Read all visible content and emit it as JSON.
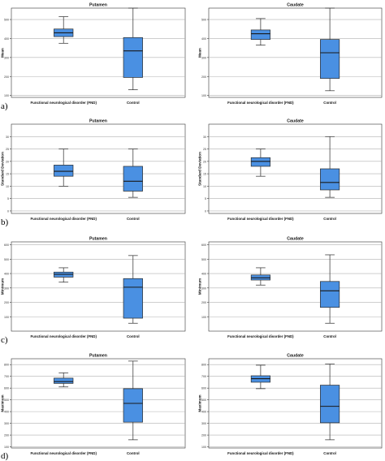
{
  "figure": {
    "row_labels": [
      "a)",
      "b)",
      "c)",
      "d)"
    ]
  },
  "style": {
    "box_fill": "#4a90e2",
    "box_stroke": "#2a2a2a",
    "grid_color": "#b0b0b0",
    "background": "#ffffff"
  },
  "chart_data": [
    {
      "type": "box",
      "row": "a)",
      "title": "Putamen",
      "ylabel": "Mean",
      "ylim": [
        90,
        560
      ],
      "yticks": [
        100,
        200,
        300,
        400,
        500
      ],
      "grid": true,
      "categories": [
        "Functional neurological disorder (FND)",
        "Control"
      ],
      "boxes": [
        {
          "min": 375,
          "q1": 410,
          "median": 430,
          "q3": 450,
          "max": 515
        },
        {
          "min": 130,
          "q1": 195,
          "median": 335,
          "q3": 405,
          "max": 590
        }
      ]
    },
    {
      "type": "box",
      "row": "a)",
      "title": "Caudate",
      "ylabel": "Mean",
      "ylim": [
        90,
        560
      ],
      "yticks": [
        100,
        200,
        300,
        400,
        500
      ],
      "grid": true,
      "categories": [
        "Functional neurological disorder (FND)",
        "Control"
      ],
      "boxes": [
        {
          "min": 365,
          "q1": 395,
          "median": 425,
          "q3": 445,
          "max": 505
        },
        {
          "min": 125,
          "q1": 190,
          "median": 325,
          "q3": 395,
          "max": 565
        }
      ]
    },
    {
      "type": "box",
      "row": "b)",
      "title": "Putamen",
      "ylabel": "Standard Deviation",
      "ylim": [
        -1,
        35
      ],
      "yticks": [
        0,
        5,
        10,
        15,
        20,
        25,
        30
      ],
      "grid": true,
      "categories": [
        "Functional neurological disorder (FND)",
        "Control"
      ],
      "boxes": [
        {
          "min": 10,
          "q1": 14,
          "median": 16,
          "q3": 18.5,
          "max": 25
        },
        {
          "min": 5.5,
          "q1": 8,
          "median": 12,
          "q3": 18,
          "max": 25
        }
      ]
    },
    {
      "type": "box",
      "row": "b)",
      "title": "Caudate",
      "ylabel": "Standard Deviation",
      "ylim": [
        -1,
        35
      ],
      "yticks": [
        0,
        5,
        10,
        15,
        20,
        25,
        30
      ],
      "grid": true,
      "categories": [
        "Functional neurological disorder (FND)",
        "Control"
      ],
      "boxes": [
        {
          "min": 14,
          "q1": 18,
          "median": 20,
          "q3": 21.5,
          "max": 25
        },
        {
          "min": 5.5,
          "q1": 8.5,
          "median": 11.5,
          "q3": 17,
          "max": 30
        }
      ]
    },
    {
      "type": "box",
      "row": "c)",
      "title": "Putamen",
      "ylabel": "Minimum",
      "ylim": [
        0,
        620
      ],
      "yticks": [
        100,
        200,
        300,
        400,
        500,
        600
      ],
      "grid": true,
      "categories": [
        "Functional neurological disorder (FND)",
        "Control"
      ],
      "boxes": [
        {
          "min": 340,
          "q1": 375,
          "median": 395,
          "q3": 410,
          "max": 440
        },
        {
          "min": 55,
          "q1": 90,
          "median": 305,
          "q3": 365,
          "max": 525
        }
      ]
    },
    {
      "type": "box",
      "row": "c)",
      "title": "Caudate",
      "ylabel": "Minimum",
      "ylim": [
        0,
        620
      ],
      "yticks": [
        100,
        200,
        300,
        400,
        500,
        600
      ],
      "grid": true,
      "categories": [
        "Functional neurological disorder (FND)",
        "Control"
      ],
      "boxes": [
        {
          "min": 320,
          "q1": 355,
          "median": 370,
          "q3": 390,
          "max": 440
        },
        {
          "min": 55,
          "q1": 165,
          "median": 280,
          "q3": 345,
          "max": 530
        }
      ]
    },
    {
      "type": "box",
      "row": "d)",
      "title": "Putamen",
      "ylabel": "Maximum",
      "ylim": [
        90,
        850
      ],
      "yticks": [
        100,
        200,
        300,
        400,
        500,
        600,
        700,
        800
      ],
      "grid": true,
      "categories": [
        "Functional neurological disorder (FND)",
        "Control"
      ],
      "boxes": [
        {
          "min": 610,
          "q1": 640,
          "median": 655,
          "q3": 685,
          "max": 730
        },
        {
          "min": 160,
          "q1": 310,
          "median": 470,
          "q3": 595,
          "max": 830
        }
      ]
    },
    {
      "type": "box",
      "row": "d)",
      "title": "Caudate",
      "ylabel": "Maximum",
      "ylim": [
        90,
        850
      ],
      "yticks": [
        100,
        200,
        300,
        400,
        500,
        600,
        700,
        800
      ],
      "grid": true,
      "categories": [
        "Functional neurological disorder (FND)",
        "Control"
      ],
      "boxes": [
        {
          "min": 595,
          "q1": 650,
          "median": 680,
          "q3": 705,
          "max": 795
        },
        {
          "min": 160,
          "q1": 305,
          "median": 445,
          "q3": 625,
          "max": 805
        }
      ]
    }
  ]
}
